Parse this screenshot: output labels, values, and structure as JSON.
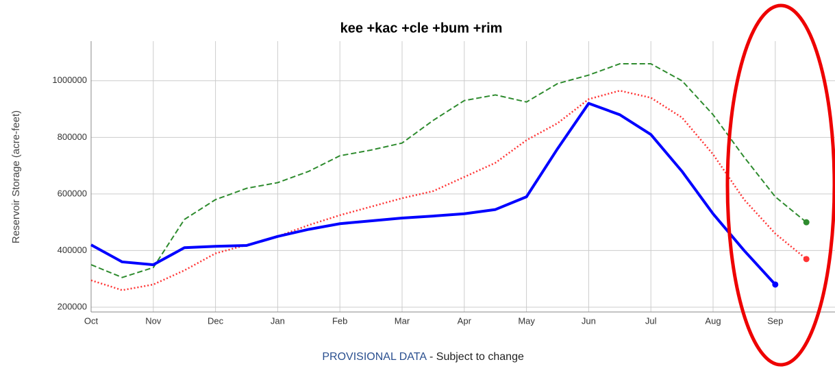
{
  "chart_data": {
    "type": "line",
    "title": "kee +kac +cle +bum +rim",
    "y_label": "Reservoir Storage (acre-feet)",
    "footer": {
      "link": "PROVISIONAL DATA",
      "note": "- Subject to change"
    },
    "categories": [
      "Oct",
      null,
      "Nov",
      null,
      "Dec",
      null,
      "Jan",
      null,
      "Feb",
      null,
      "Mar",
      null,
      "Apr",
      null,
      "May",
      null,
      "Jun",
      null,
      "Jul",
      null,
      "Aug",
      null,
      "Sep",
      null
    ],
    "series": [
      {
        "color": "#2e8b2e",
        "dash": "dashed",
        "values": [
          350000,
          305000,
          340000,
          510000,
          580000,
          620000,
          640000,
          680000,
          735000,
          755000,
          780000,
          860000,
          930000,
          950000,
          925000,
          990000,
          1020000,
          1060000,
          1060000,
          1000000,
          880000,
          730000,
          590000,
          500000
        ]
      },
      {
        "color": "#ff3333",
        "dash": "dotted",
        "values": [
          295000,
          260000,
          280000,
          330000,
          390000,
          420000,
          450000,
          490000,
          525000,
          555000,
          585000,
          610000,
          660000,
          710000,
          790000,
          850000,
          935000,
          965000,
          940000,
          870000,
          740000,
          580000,
          460000,
          370000
        ]
      },
      {
        "color": "#0000ff",
        "dash": "solid",
        "values": [
          420000,
          360000,
          350000,
          410000,
          415000,
          418000,
          450000,
          475000,
          495000,
          505000,
          515000,
          522000,
          530000,
          545000,
          590000,
          760000,
          920000,
          880000,
          810000,
          680000,
          530000,
          400000,
          280000,
          null
        ]
      }
    ],
    "ylim": [
      183000,
      1140000
    ],
    "yticks": [
      200000,
      400000,
      600000,
      800000,
      1000000
    ],
    "grid": true
  }
}
